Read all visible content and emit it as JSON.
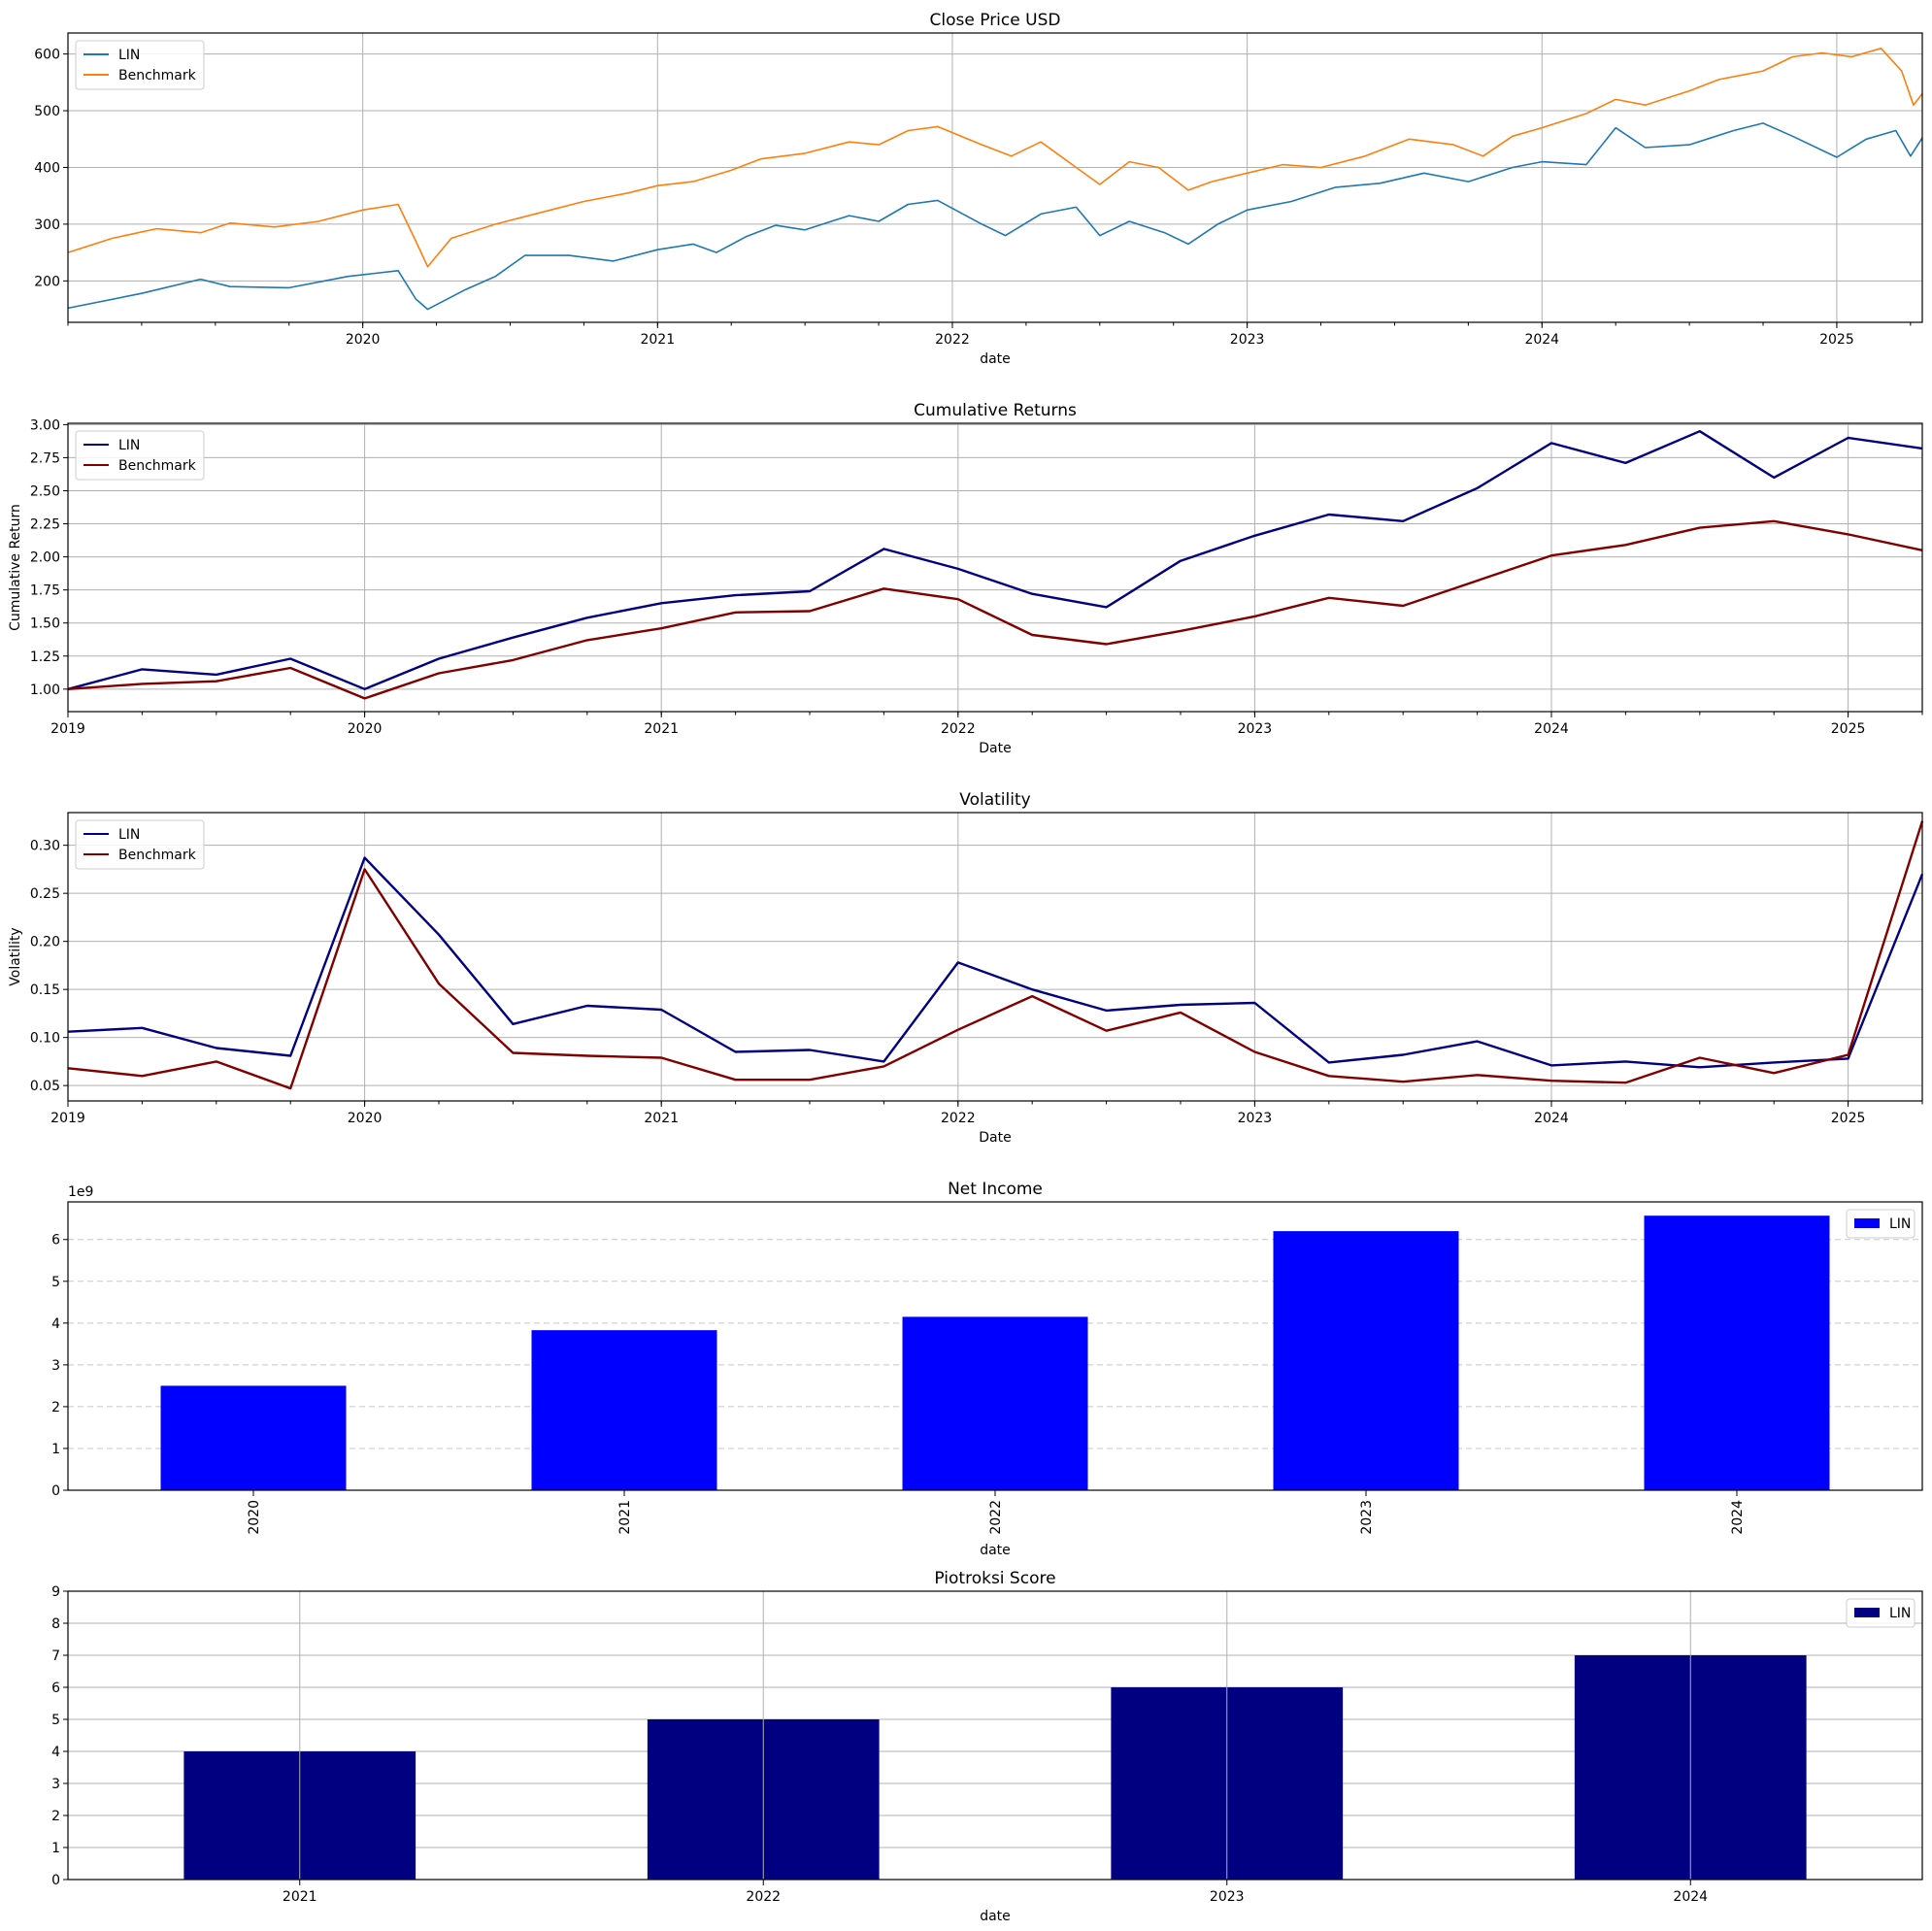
{
  "chart_data": [
    {
      "type": "line",
      "title": "Close Price USD",
      "xlabel": "date",
      "ylabel": "",
      "x_ticks": [
        "2020",
        "2021",
        "2022",
        "2023",
        "2024",
        "2025"
      ],
      "y_ticks": [
        "200",
        "300",
        "400",
        "500",
        "600"
      ],
      "xlim": [
        2019.0,
        2025.29
      ],
      "ylim": [
        127,
        637
      ],
      "grid": "both",
      "legend": "top-left",
      "series": [
        {
          "name": "LIN",
          "color": "#1f77b4",
          "points": [
            [
              2019.0,
              152
            ],
            [
              2019.25,
              178
            ],
            [
              2019.45,
              203
            ],
            [
              2019.55,
              190
            ],
            [
              2019.75,
              188
            ],
            [
              2019.95,
              208
            ],
            [
              2020.12,
              218
            ],
            [
              2020.18,
              168
            ],
            [
              2020.22,
              150
            ],
            [
              2020.35,
              185
            ],
            [
              2020.45,
              208
            ],
            [
              2020.55,
              245
            ],
            [
              2020.7,
              245
            ],
            [
              2020.85,
              235
            ],
            [
              2021.0,
              255
            ],
            [
              2021.12,
              265
            ],
            [
              2021.2,
              250
            ],
            [
              2021.3,
              278
            ],
            [
              2021.4,
              298
            ],
            [
              2021.5,
              290
            ],
            [
              2021.65,
              315
            ],
            [
              2021.75,
              305
            ],
            [
              2021.85,
              335
            ],
            [
              2021.95,
              342
            ],
            [
              2022.1,
              300
            ],
            [
              2022.18,
              280
            ],
            [
              2022.3,
              318
            ],
            [
              2022.42,
              330
            ],
            [
              2022.5,
              280
            ],
            [
              2022.6,
              305
            ],
            [
              2022.72,
              285
            ],
            [
              2022.8,
              265
            ],
            [
              2022.9,
              300
            ],
            [
              2023.0,
              325
            ],
            [
              2023.15,
              340
            ],
            [
              2023.3,
              365
            ],
            [
              2023.45,
              372
            ],
            [
              2023.6,
              390
            ],
            [
              2023.75,
              375
            ],
            [
              2023.9,
              400
            ],
            [
              2024.0,
              410
            ],
            [
              2024.15,
              405
            ],
            [
              2024.25,
              470
            ],
            [
              2024.35,
              435
            ],
            [
              2024.5,
              440
            ],
            [
              2024.65,
              465
            ],
            [
              2024.75,
              478
            ],
            [
              2024.85,
              455
            ],
            [
              2025.0,
              418
            ],
            [
              2025.1,
              450
            ],
            [
              2025.2,
              465
            ],
            [
              2025.25,
              420
            ],
            [
              2025.29,
              452
            ]
          ]
        },
        {
          "name": "Benchmark",
          "color": "#ff7f0e",
          "points": [
            [
              2019.0,
              250
            ],
            [
              2019.15,
              275
            ],
            [
              2019.3,
              292
            ],
            [
              2019.45,
              285
            ],
            [
              2019.55,
              302
            ],
            [
              2019.7,
              295
            ],
            [
              2019.85,
              305
            ],
            [
              2020.0,
              325
            ],
            [
              2020.12,
              335
            ],
            [
              2020.18,
              270
            ],
            [
              2020.22,
              225
            ],
            [
              2020.3,
              275
            ],
            [
              2020.45,
              300
            ],
            [
              2020.6,
              320
            ],
            [
              2020.75,
              340
            ],
            [
              2020.9,
              355
            ],
            [
              2021.0,
              368
            ],
            [
              2021.12,
              375
            ],
            [
              2021.25,
              395
            ],
            [
              2021.35,
              415
            ],
            [
              2021.5,
              425
            ],
            [
              2021.65,
              445
            ],
            [
              2021.75,
              440
            ],
            [
              2021.85,
              465
            ],
            [
              2021.95,
              472
            ],
            [
              2022.1,
              440
            ],
            [
              2022.2,
              420
            ],
            [
              2022.3,
              445
            ],
            [
              2022.42,
              400
            ],
            [
              2022.5,
              370
            ],
            [
              2022.6,
              410
            ],
            [
              2022.7,
              400
            ],
            [
              2022.8,
              360
            ],
            [
              2022.88,
              375
            ],
            [
              2023.0,
              390
            ],
            [
              2023.12,
              405
            ],
            [
              2023.25,
              400
            ],
            [
              2023.4,
              420
            ],
            [
              2023.55,
              450
            ],
            [
              2023.7,
              440
            ],
            [
              2023.8,
              420
            ],
            [
              2023.9,
              455
            ],
            [
              2024.0,
              470
            ],
            [
              2024.15,
              495
            ],
            [
              2024.25,
              520
            ],
            [
              2024.35,
              510
            ],
            [
              2024.5,
              535
            ],
            [
              2024.6,
              555
            ],
            [
              2024.75,
              570
            ],
            [
              2024.85,
              595
            ],
            [
              2024.95,
              602
            ],
            [
              2025.05,
              595
            ],
            [
              2025.15,
              610
            ],
            [
              2025.22,
              570
            ],
            [
              2025.26,
              510
            ],
            [
              2025.29,
              530
            ]
          ]
        }
      ]
    },
    {
      "type": "line",
      "title": "Cumulative Returns",
      "xlabel": "Date",
      "ylabel": "Cumulative Return",
      "x_ticks": [
        "2019",
        "2020",
        "2021",
        "2022",
        "2023",
        "2024",
        "2025"
      ],
      "y_ticks": [
        "1.00",
        "1.25",
        "1.50",
        "1.75",
        "2.00",
        "2.25",
        "2.50",
        "2.75",
        "3.00"
      ],
      "xlim": [
        2019.0,
        2025.25
      ],
      "ylim": [
        0.83,
        3.01
      ],
      "grid": "both",
      "legend": "top-left",
      "series": [
        {
          "name": "LIN",
          "color": "#000080",
          "points": [
            [
              2019.0,
              1.0
            ],
            [
              2019.25,
              1.15
            ],
            [
              2019.5,
              1.11
            ],
            [
              2019.75,
              1.23
            ],
            [
              2020.0,
              1.0
            ],
            [
              2020.25,
              1.23
            ],
            [
              2020.5,
              1.39
            ],
            [
              2020.75,
              1.54
            ],
            [
              2021.0,
              1.65
            ],
            [
              2021.25,
              1.71
            ],
            [
              2021.5,
              1.74
            ],
            [
              2021.75,
              2.06
            ],
            [
              2022.0,
              1.91
            ],
            [
              2022.25,
              1.72
            ],
            [
              2022.5,
              1.62
            ],
            [
              2022.75,
              1.97
            ],
            [
              2023.0,
              2.16
            ],
            [
              2023.25,
              2.32
            ],
            [
              2023.5,
              2.27
            ],
            [
              2023.75,
              2.52
            ],
            [
              2024.0,
              2.86
            ],
            [
              2024.25,
              2.71
            ],
            [
              2024.5,
              2.95
            ],
            [
              2024.75,
              2.6
            ],
            [
              2025.0,
              2.9
            ],
            [
              2025.25,
              2.82
            ]
          ]
        },
        {
          "name": "Benchmark",
          "color": "#800000",
          "points": [
            [
              2019.0,
              1.0
            ],
            [
              2019.25,
              1.04
            ],
            [
              2019.5,
              1.06
            ],
            [
              2019.75,
              1.16
            ],
            [
              2020.0,
              0.93
            ],
            [
              2020.25,
              1.12
            ],
            [
              2020.5,
              1.22
            ],
            [
              2020.75,
              1.37
            ],
            [
              2021.0,
              1.46
            ],
            [
              2021.25,
              1.58
            ],
            [
              2021.5,
              1.59
            ],
            [
              2021.75,
              1.76
            ],
            [
              2022.0,
              1.68
            ],
            [
              2022.25,
              1.41
            ],
            [
              2022.5,
              1.34
            ],
            [
              2022.75,
              1.44
            ],
            [
              2023.0,
              1.55
            ],
            [
              2023.25,
              1.69
            ],
            [
              2023.5,
              1.63
            ],
            [
              2023.75,
              1.82
            ],
            [
              2024.0,
              2.01
            ],
            [
              2024.25,
              2.09
            ],
            [
              2024.5,
              2.22
            ],
            [
              2024.75,
              2.27
            ],
            [
              2025.0,
              2.17
            ],
            [
              2025.25,
              2.05
            ]
          ]
        }
      ]
    },
    {
      "type": "line",
      "title": "Volatility",
      "xlabel": "Date",
      "ylabel": "Volatility",
      "x_ticks": [
        "2019",
        "2020",
        "2021",
        "2022",
        "2023",
        "2024",
        "2025"
      ],
      "y_ticks": [
        "0.05",
        "0.10",
        "0.15",
        "0.20",
        "0.25",
        "0.30"
      ],
      "xlim": [
        2019.0,
        2025.25
      ],
      "ylim": [
        0.034,
        0.334
      ],
      "grid": "both",
      "legend": "top-left",
      "series": [
        {
          "name": "LIN",
          "color": "#000080",
          "points": [
            [
              2019.0,
              0.106
            ],
            [
              2019.25,
              0.11
            ],
            [
              2019.5,
              0.089
            ],
            [
              2019.75,
              0.081
            ],
            [
              2020.0,
              0.287
            ],
            [
              2020.25,
              0.207
            ],
            [
              2020.5,
              0.114
            ],
            [
              2020.75,
              0.133
            ],
            [
              2021.0,
              0.129
            ],
            [
              2021.25,
              0.085
            ],
            [
              2021.5,
              0.087
            ],
            [
              2021.75,
              0.075
            ],
            [
              2022.0,
              0.178
            ],
            [
              2022.25,
              0.15
            ],
            [
              2022.5,
              0.128
            ],
            [
              2022.75,
              0.134
            ],
            [
              2023.0,
              0.136
            ],
            [
              2023.25,
              0.074
            ],
            [
              2023.5,
              0.082
            ],
            [
              2023.75,
              0.096
            ],
            [
              2024.0,
              0.071
            ],
            [
              2024.25,
              0.075
            ],
            [
              2024.5,
              0.069
            ],
            [
              2024.75,
              0.074
            ],
            [
              2025.0,
              0.078
            ],
            [
              2025.25,
              0.27
            ]
          ]
        },
        {
          "name": "Benchmark",
          "color": "#800000",
          "points": [
            [
              2019.0,
              0.068
            ],
            [
              2019.25,
              0.06
            ],
            [
              2019.5,
              0.075
            ],
            [
              2019.75,
              0.047
            ],
            [
              2020.0,
              0.275
            ],
            [
              2020.25,
              0.156
            ],
            [
              2020.5,
              0.084
            ],
            [
              2020.75,
              0.081
            ],
            [
              2021.0,
              0.079
            ],
            [
              2021.25,
              0.056
            ],
            [
              2021.5,
              0.056
            ],
            [
              2021.75,
              0.07
            ],
            [
              2022.0,
              0.108
            ],
            [
              2022.25,
              0.143
            ],
            [
              2022.5,
              0.107
            ],
            [
              2022.75,
              0.126
            ],
            [
              2023.0,
              0.085
            ],
            [
              2023.25,
              0.06
            ],
            [
              2023.5,
              0.054
            ],
            [
              2023.75,
              0.061
            ],
            [
              2024.0,
              0.055
            ],
            [
              2024.25,
              0.053
            ],
            [
              2024.5,
              0.079
            ],
            [
              2024.75,
              0.063
            ],
            [
              2025.0,
              0.082
            ],
            [
              2025.25,
              0.325
            ]
          ]
        }
      ]
    },
    {
      "type": "bar",
      "title": "Net Income",
      "xlabel": "date",
      "ylabel": "",
      "scale_label": "1e9",
      "categories": [
        "2020",
        "2021",
        "2022",
        "2023",
        "2024"
      ],
      "tick_rotation": "vertical",
      "y_ticks": [
        "0",
        "1",
        "2",
        "3",
        "4",
        "5",
        "6"
      ],
      "ylim": [
        0,
        6.9
      ],
      "grid": "y-dashed",
      "legend": "top-right",
      "series": [
        {
          "name": "LIN",
          "color": "#0000ff",
          "values": [
            2.5,
            3.83,
            4.15,
            6.2,
            6.57
          ]
        }
      ]
    },
    {
      "type": "bar",
      "title": "Piotroksi Score",
      "xlabel": "date",
      "ylabel": "",
      "categories": [
        "2021",
        "2022",
        "2023",
        "2024"
      ],
      "tick_rotation": "horizontal",
      "y_ticks": [
        "0",
        "1",
        "2",
        "3",
        "4",
        "5",
        "6",
        "7",
        "8",
        "9"
      ],
      "ylim": [
        0,
        9
      ],
      "grid": "both",
      "legend": "top-right",
      "series": [
        {
          "name": "LIN",
          "color": "#000080",
          "values": [
            4,
            5,
            6,
            7
          ]
        }
      ]
    }
  ]
}
